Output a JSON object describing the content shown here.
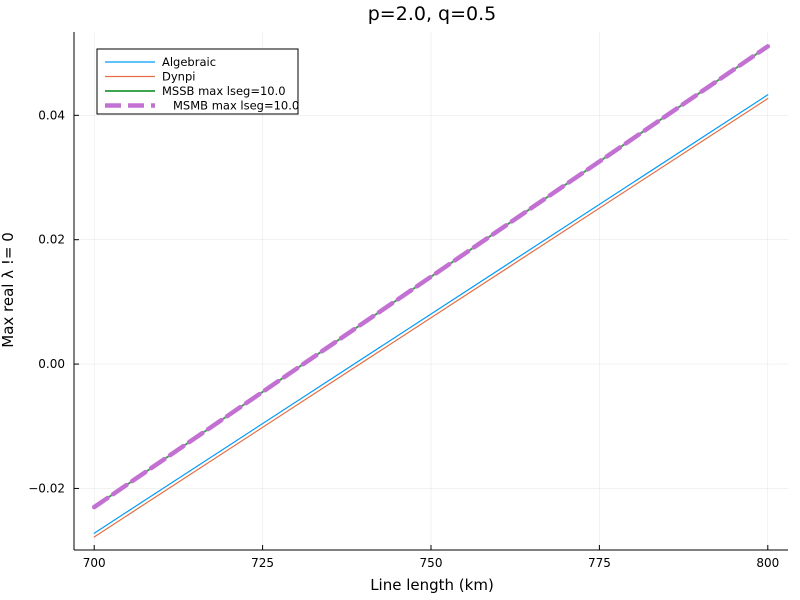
{
  "chart_data": {
    "type": "line",
    "title": "p=2.0, q=0.5",
    "xlabel": "Line length (km)",
    "ylabel": "Max real λ != 0",
    "xlim": [
      697,
      803
    ],
    "ylim": [
      -0.0299,
      0.0534
    ],
    "xticks": [
      700,
      725,
      750,
      775,
      800
    ],
    "xtick_labels": [
      "700",
      "725",
      "750",
      "775",
      "800"
    ],
    "yticks": [
      -0.02,
      0.0,
      0.02,
      0.04
    ],
    "ytick_labels": [
      "−0.02",
      "0.00",
      "0.02",
      "0.04"
    ],
    "grid": true,
    "legend_position": "top-left",
    "series": [
      {
        "name": "Algebraic",
        "color": "#009AFA",
        "style": "solid",
        "x": [
          700,
          800
        ],
        "y": [
          -0.0272,
          0.0433
        ]
      },
      {
        "name": "Dynpi",
        "color": "#E36F47",
        "style": "solid",
        "x": [
          700,
          800
        ],
        "y": [
          -0.0278,
          0.0427
        ]
      },
      {
        "name": "MSSB max lseg=10.0",
        "color": "#3EA44E",
        "style": "solid",
        "x": [
          700,
          800
        ],
        "y": [
          -0.023,
          0.0511
        ]
      },
      {
        "name": "MSMB max lseg=10.0",
        "color": "#C271D2",
        "style": "dash",
        "x": [
          700,
          800
        ],
        "y": [
          -0.023,
          0.0511
        ]
      }
    ]
  }
}
